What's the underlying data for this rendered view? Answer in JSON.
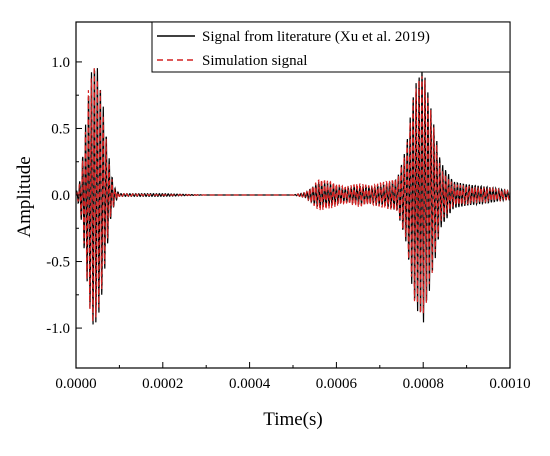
{
  "chart_data": {
    "type": "line",
    "title": "",
    "xlabel": "Time(s)",
    "ylabel": "Amplitude",
    "xlim": [
      0.0,
      0.001
    ],
    "ylim": [
      -1.3,
      1.3
    ],
    "xticks": [
      "0.0000",
      "0.0002",
      "0.0004",
      "0.0006",
      "0.0008",
      "0.0010"
    ],
    "xtick_values": [
      0.0,
      0.0002,
      0.0004,
      0.0006,
      0.0008,
      0.001
    ],
    "yticks": [
      "1.0",
      "0.5",
      "0.0",
      "-0.5",
      "-1.0"
    ],
    "ytick_values": [
      1.0,
      0.5,
      0.0,
      -0.5,
      -1.0
    ],
    "grid": false,
    "legend_position": "top-right",
    "series": [
      {
        "name": "Signal from literature (Xu et al. 2019)",
        "color": "#000000",
        "dash": "solid",
        "x": [
          0.0,
          1e-05,
          2e-05,
          3e-05,
          4e-05,
          5e-05,
          6e-05,
          7e-05,
          8e-05,
          9e-05,
          0.0001,
          0.0002,
          0.0003,
          0.0004,
          0.0005,
          0.00053,
          0.00056,
          0.00059,
          0.00062,
          0.00065,
          0.00068,
          0.00071,
          0.00074,
          0.00076,
          0.00078,
          0.0008,
          0.00082,
          0.00084,
          0.00087,
          0.0009,
          0.00095,
          0.001
        ],
        "envelope": [
          0.0,
          0.12,
          0.45,
          0.82,
          1.0,
          0.95,
          0.75,
          0.45,
          0.18,
          0.05,
          0.01,
          0.01,
          0.0,
          0.0,
          0.0,
          0.02,
          0.1,
          0.08,
          0.05,
          0.07,
          0.06,
          0.08,
          0.12,
          0.35,
          0.82,
          0.97,
          0.62,
          0.25,
          0.1,
          0.08,
          0.06,
          0.03
        ]
      },
      {
        "name": "Simulation signal",
        "color": "#d42020",
        "dash": "dashed",
        "x": [
          0.0,
          1e-05,
          2e-05,
          3e-05,
          4e-05,
          5e-05,
          6e-05,
          7e-05,
          8e-05,
          9e-05,
          0.0001,
          0.0002,
          0.0003,
          0.0004,
          0.0005,
          0.00053,
          0.00056,
          0.00059,
          0.00062,
          0.00065,
          0.00068,
          0.00071,
          0.00074,
          0.00076,
          0.00078,
          0.0008,
          0.00082,
          0.00084,
          0.00087,
          0.0009,
          0.00095,
          0.001
        ],
        "envelope": [
          0.0,
          0.1,
          0.42,
          0.85,
          0.98,
          0.9,
          0.7,
          0.4,
          0.15,
          0.04,
          0.01,
          0.0,
          0.0,
          0.0,
          0.0,
          0.02,
          0.12,
          0.1,
          0.06,
          0.09,
          0.07,
          0.1,
          0.12,
          0.33,
          0.8,
          0.93,
          0.6,
          0.2,
          0.08,
          0.07,
          0.05,
          0.03
        ]
      }
    ]
  }
}
